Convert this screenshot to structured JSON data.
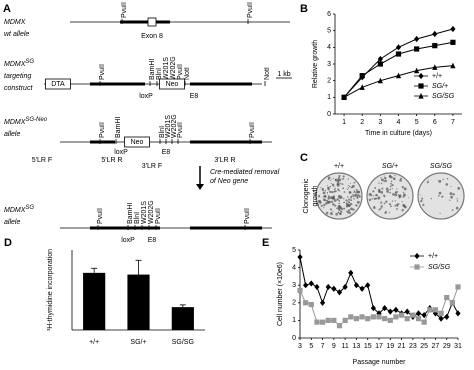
{
  "panel_labels": [
    "A",
    "B",
    "C",
    "D",
    "E"
  ],
  "diagram": {
    "rows": [
      {
        "name": "MDMX",
        "desc": [
          "wt allele"
        ],
        "labels": [
          "PvuII",
          "Exon 8",
          "PvuII"
        ]
      },
      {
        "name": "MDMX",
        "sup": "SG",
        "desc": [
          "targeting",
          "construct"
        ],
        "labels": [
          "DTA",
          "PvuII",
          "BamHI",
          "BlnI",
          "W201S",
          "W202G",
          "PvuII",
          "NotI",
          "Neo",
          "loxP",
          "E8",
          "NotI",
          "1 kb"
        ]
      },
      {
        "name": "MDMX",
        "sup": "SG-Neo",
        "desc": [
          "allele"
        ],
        "labels": [
          "PvuII",
          "BamHI",
          "Neo",
          "loxP",
          "E8",
          "BlnI",
          "W201S",
          "W202G",
          "PvuII",
          "PvuII",
          "5'LR F",
          "5'LR R",
          "3'LR F",
          "3'LR R"
        ]
      },
      {
        "name": "MDMX",
        "sup": "SG",
        "desc": [
          "allele"
        ],
        "labels": [
          "PvuII",
          "BamHI",
          "BlnI",
          "W201S",
          "W202G",
          "PvuII",
          "loxP",
          "E8",
          "PvuII"
        ]
      }
    ],
    "note": [
      "Cre-mediated removal",
      "of Neo gene"
    ]
  },
  "panel_c": {
    "columns": [
      "+/+",
      "SG/+",
      "SG/SG"
    ],
    "ylabel": [
      "Clonogenic",
      "growth"
    ]
  },
  "chart_data": [
    {
      "type": "line",
      "x": [
        1,
        2,
        3,
        4,
        5,
        6,
        7
      ],
      "xlim": [
        0.5,
        7.5
      ],
      "xticks": [
        1,
        2,
        3,
        4,
        5,
        6,
        7
      ],
      "ylim": [
        0,
        6
      ],
      "yticks": [
        0,
        1,
        2,
        3,
        4,
        5,
        6
      ],
      "xlabel": "Time in culture (days)",
      "ylabel": "Relative growth",
      "legend": "lower right",
      "series": [
        {
          "name": "+/+",
          "color": "#000000",
          "marker": "diamond",
          "values": [
            1,
            2.2,
            3.3,
            4.0,
            4.5,
            4.8,
            5.1
          ]
        },
        {
          "name": "SG/+",
          "color": "#000000",
          "marker": "square",
          "values": [
            1,
            2.3,
            3.0,
            3.6,
            3.9,
            4.1,
            4.3
          ]
        },
        {
          "name": "SG/SG",
          "color": "#000000",
          "marker": "triangle",
          "values": [
            1,
            1.6,
            2.0,
            2.3,
            2.6,
            2.8,
            2.9
          ]
        }
      ]
    },
    {
      "type": "bar",
      "categories": [
        "+/+",
        "SG/+",
        "SG/SG"
      ],
      "values": [
        1.0,
        0.97,
        0.4
      ],
      "errors": [
        0.08,
        0.25,
        0.04
      ],
      "color": "#000000",
      "ylim": [
        0,
        1.4
      ],
      "ylabel": "³H-thymidine incorporation"
    },
    {
      "type": "line",
      "x": [
        3,
        4,
        5,
        6,
        7,
        8,
        9,
        10,
        11,
        12,
        13,
        14,
        15,
        16,
        17,
        18,
        19,
        20,
        21,
        22,
        23,
        24,
        25,
        26,
        27,
        28,
        29,
        30,
        31
      ],
      "xlim": [
        3,
        31
      ],
      "xticks": [
        3,
        5,
        7,
        9,
        11,
        13,
        15,
        17,
        19,
        21,
        23,
        25,
        27,
        29,
        31
      ],
      "ylim": [
        0,
        5
      ],
      "yticks": [
        0,
        1,
        2,
        3,
        4,
        5
      ],
      "xlabel": "Passage number",
      "ylabel": "Cell number (×10e6)",
      "legend": "upper right",
      "series": [
        {
          "name": "+/+",
          "color": "#000000",
          "marker": "diamond",
          "values": [
            4.6,
            3.0,
            3.1,
            2.9,
            2.0,
            2.9,
            2.8,
            2.6,
            2.9,
            3.7,
            3.0,
            2.8,
            3.0,
            1.7,
            1.4,
            1.7,
            1.5,
            1.6,
            1.4,
            1.5,
            1.2,
            1.4,
            1.3,
            1.7,
            1.4,
            1.1,
            1.2,
            2.0,
            1.4
          ]
        },
        {
          "name": "SG/SG",
          "color": "#999999",
          "marker": "square",
          "values": [
            2.7,
            2.0,
            1.9,
            0.9,
            0.9,
            1.0,
            1.0,
            0.7,
            1.0,
            1.2,
            1.1,
            1.2,
            1.1,
            1.2,
            1.2,
            1.1,
            1.0,
            1.2,
            1.3,
            1.1,
            1.3,
            1.1,
            0.9,
            1.6,
            1.6,
            1.4,
            2.3,
            2.0,
            2.9
          ]
        }
      ]
    }
  ]
}
